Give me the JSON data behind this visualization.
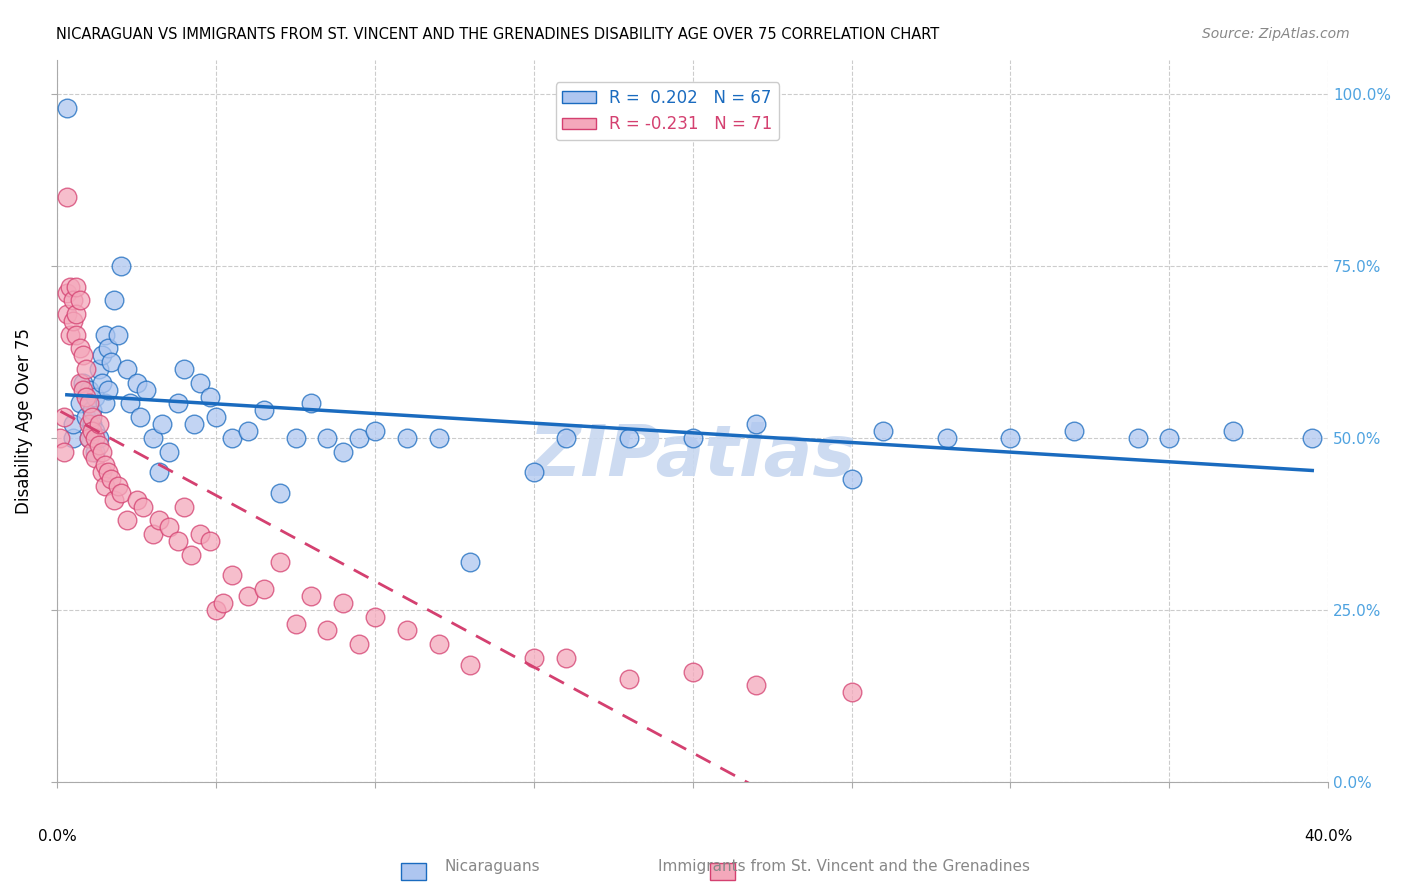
{
  "title": "NICARAGUAN VS IMMIGRANTS FROM ST. VINCENT AND THE GRENADINES DISABILITY AGE OVER 75 CORRELATION CHART",
  "source": "Source: ZipAtlas.com",
  "ylabel": "Disability Age Over 75",
  "ytick_labels": [
    "0.0%",
    "25.0%",
    "50.0%",
    "75.0%",
    "100.0%"
  ],
  "ytick_values": [
    0.0,
    0.25,
    0.5,
    0.75,
    1.0
  ],
  "xlim": [
    0.0,
    0.4
  ],
  "ylim": [
    0.0,
    1.05
  ],
  "legend_blue_r": "0.202",
  "legend_blue_n": "67",
  "legend_pink_r": "-0.231",
  "legend_pink_n": "71",
  "blue_color": "#aec6f0",
  "blue_line_color": "#1a6bbf",
  "pink_color": "#f4a8bb",
  "pink_line_color": "#d44070",
  "watermark": "ZIPatlas",
  "watermark_color": "#c8d8f0",
  "blue_scatter_x": [
    0.003,
    0.005,
    0.005,
    0.007,
    0.008,
    0.009,
    0.01,
    0.01,
    0.011,
    0.011,
    0.012,
    0.012,
    0.012,
    0.013,
    0.013,
    0.014,
    0.014,
    0.015,
    0.015,
    0.016,
    0.016,
    0.017,
    0.018,
    0.019,
    0.02,
    0.022,
    0.023,
    0.025,
    0.026,
    0.028,
    0.03,
    0.032,
    0.033,
    0.035,
    0.038,
    0.04,
    0.043,
    0.045,
    0.048,
    0.05,
    0.055,
    0.06,
    0.065,
    0.07,
    0.075,
    0.08,
    0.085,
    0.09,
    0.095,
    0.1,
    0.11,
    0.12,
    0.13,
    0.15,
    0.16,
    0.18,
    0.2,
    0.22,
    0.25,
    0.28,
    0.3,
    0.32,
    0.34,
    0.35,
    0.37,
    0.395,
    0.26
  ],
  "blue_scatter_y": [
    0.98,
    0.5,
    0.52,
    0.55,
    0.58,
    0.53,
    0.57,
    0.5,
    0.52,
    0.54,
    0.56,
    0.48,
    0.51,
    0.6,
    0.5,
    0.62,
    0.58,
    0.65,
    0.55,
    0.63,
    0.57,
    0.61,
    0.7,
    0.65,
    0.75,
    0.6,
    0.55,
    0.58,
    0.53,
    0.57,
    0.5,
    0.45,
    0.52,
    0.48,
    0.55,
    0.6,
    0.52,
    0.58,
    0.56,
    0.53,
    0.5,
    0.51,
    0.54,
    0.42,
    0.5,
    0.55,
    0.5,
    0.48,
    0.5,
    0.51,
    0.5,
    0.5,
    0.32,
    0.45,
    0.5,
    0.5,
    0.5,
    0.52,
    0.44,
    0.5,
    0.5,
    0.51,
    0.5,
    0.5,
    0.51,
    0.5,
    0.51
  ],
  "pink_scatter_x": [
    0.001,
    0.002,
    0.002,
    0.003,
    0.003,
    0.003,
    0.004,
    0.004,
    0.005,
    0.005,
    0.006,
    0.006,
    0.006,
    0.007,
    0.007,
    0.007,
    0.008,
    0.008,
    0.009,
    0.009,
    0.01,
    0.01,
    0.01,
    0.011,
    0.011,
    0.011,
    0.012,
    0.012,
    0.013,
    0.013,
    0.014,
    0.014,
    0.015,
    0.015,
    0.016,
    0.017,
    0.018,
    0.019,
    0.02,
    0.022,
    0.025,
    0.027,
    0.03,
    0.032,
    0.035,
    0.038,
    0.04,
    0.042,
    0.045,
    0.048,
    0.05,
    0.052,
    0.055,
    0.06,
    0.065,
    0.07,
    0.075,
    0.08,
    0.085,
    0.09,
    0.095,
    0.1,
    0.11,
    0.12,
    0.13,
    0.15,
    0.16,
    0.18,
    0.2,
    0.22,
    0.25
  ],
  "pink_scatter_y": [
    0.5,
    0.53,
    0.48,
    0.85,
    0.71,
    0.68,
    0.72,
    0.65,
    0.67,
    0.7,
    0.72,
    0.65,
    0.68,
    0.7,
    0.63,
    0.58,
    0.62,
    0.57,
    0.6,
    0.56,
    0.55,
    0.52,
    0.5,
    0.53,
    0.51,
    0.48,
    0.5,
    0.47,
    0.52,
    0.49,
    0.48,
    0.45,
    0.43,
    0.46,
    0.45,
    0.44,
    0.41,
    0.43,
    0.42,
    0.38,
    0.41,
    0.4,
    0.36,
    0.38,
    0.37,
    0.35,
    0.4,
    0.33,
    0.36,
    0.35,
    0.25,
    0.26,
    0.3,
    0.27,
    0.28,
    0.32,
    0.23,
    0.27,
    0.22,
    0.26,
    0.2,
    0.24,
    0.22,
    0.2,
    0.17,
    0.18,
    0.18,
    0.15,
    0.16,
    0.14,
    0.13
  ]
}
